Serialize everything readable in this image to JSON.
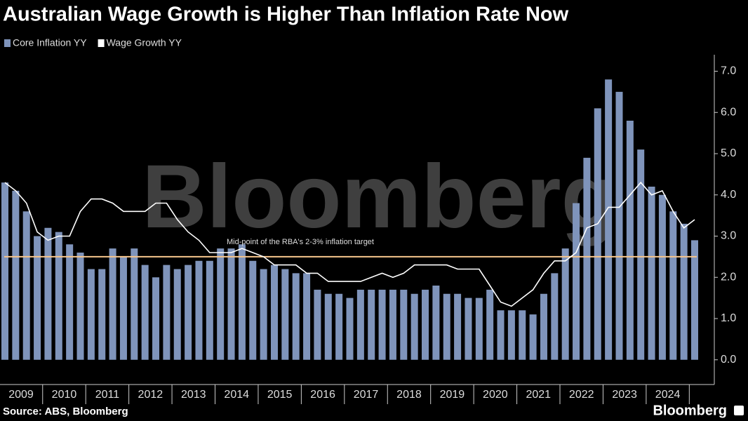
{
  "chart_data": {
    "type": "bar_line",
    "title": "Australian Wage Growth is Higher Than Inflation Rate Now",
    "source": "Source: ABS, Bloomberg",
    "logo": "Bloomberg",
    "watermark": "Bloomberg",
    "legend": "top-left",
    "years": [
      "2009",
      "2010",
      "2011",
      "2012",
      "2013",
      "2014",
      "2015",
      "2016",
      "2017",
      "2018",
      "2019",
      "2020",
      "2021",
      "2022",
      "2023",
      "2024"
    ],
    "series": [
      {
        "name": "Core Inflation YY",
        "type": "bar",
        "color": "#7f94bb",
        "values": [
          4.3,
          4.1,
          3.6,
          3.0,
          3.2,
          3.1,
          2.8,
          2.6,
          2.2,
          2.2,
          2.7,
          2.5,
          2.7,
          2.3,
          2.0,
          2.3,
          2.2,
          2.3,
          2.4,
          2.4,
          2.7,
          2.7,
          2.8,
          2.4,
          2.2,
          2.3,
          2.2,
          2.1,
          2.1,
          1.7,
          1.6,
          1.6,
          1.5,
          1.7,
          1.7,
          1.7,
          1.7,
          1.7,
          1.6,
          1.7,
          1.8,
          1.6,
          1.6,
          1.5,
          1.5,
          1.7,
          1.2,
          1.2,
          1.2,
          1.1,
          1.6,
          2.1,
          2.7,
          3.8,
          4.9,
          6.1,
          6.8,
          6.5,
          5.8,
          5.1,
          4.2,
          4.0,
          3.6,
          3.3,
          2.9
        ]
      },
      {
        "name": "Wage Growth YY",
        "type": "line",
        "color": "#ffffff",
        "values": [
          4.3,
          4.1,
          3.8,
          3.1,
          2.9,
          3.0,
          3.0,
          3.6,
          3.9,
          3.9,
          3.8,
          3.6,
          3.6,
          3.6,
          3.8,
          3.8,
          3.4,
          3.1,
          2.9,
          2.6,
          2.6,
          2.6,
          2.7,
          2.6,
          2.5,
          2.3,
          2.3,
          2.3,
          2.1,
          2.1,
          1.9,
          1.9,
          1.9,
          1.9,
          2.0,
          2.1,
          2.0,
          2.1,
          2.3,
          2.3,
          2.3,
          2.3,
          2.2,
          2.2,
          2.2,
          1.8,
          1.4,
          1.3,
          1.5,
          1.7,
          2.1,
          2.4,
          2.4,
          2.6,
          3.2,
          3.3,
          3.7,
          3.7,
          4.0,
          4.3,
          4.0,
          4.1,
          3.6,
          3.2,
          3.4
        ]
      }
    ],
    "reference_line": {
      "value": 2.5,
      "label": "Mid-point of the RBA's 2-3% inflation target",
      "color": "#f7c68c"
    },
    "ylim": [
      -0.6,
      7.4
    ],
    "yticks": [
      {
        "value": 0,
        "label": "0.0"
      },
      {
        "value": 1,
        "label": "1.0"
      },
      {
        "value": 2,
        "label": "2.0"
      },
      {
        "value": 3,
        "label": "3.0"
      },
      {
        "value": 4,
        "label": "4.0"
      },
      {
        "value": 5,
        "label": "5.0"
      },
      {
        "value": 6,
        "label": "6.0"
      },
      {
        "value": 7,
        "label": "7.0"
      }
    ]
  }
}
